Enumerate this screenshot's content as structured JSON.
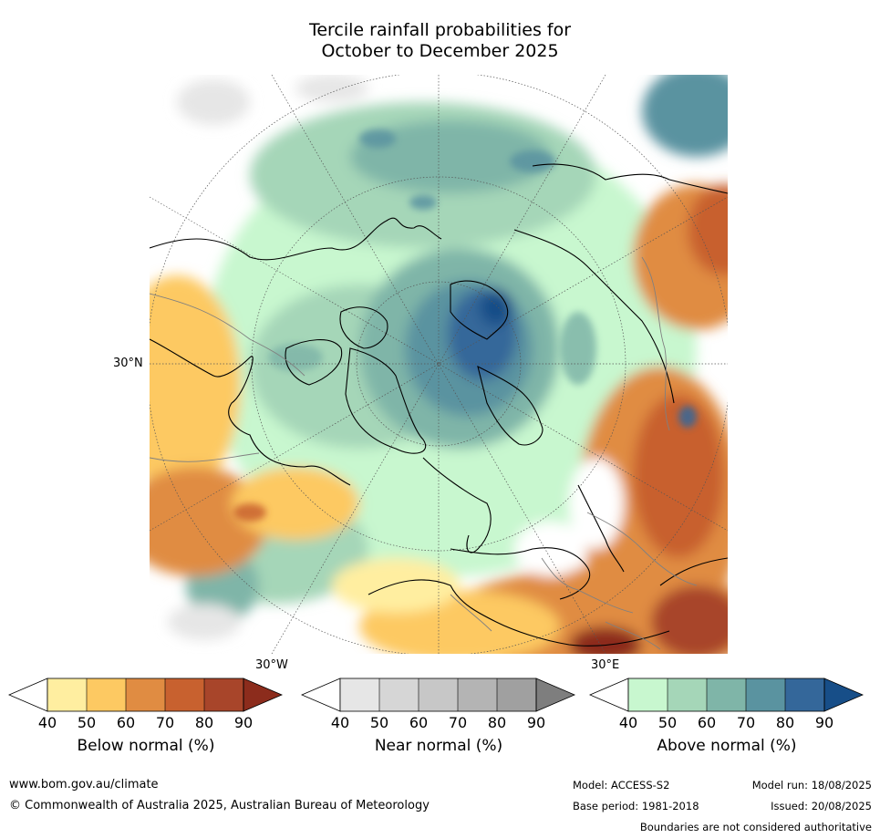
{
  "title": {
    "line1": "Tercile rainfall probabilities for",
    "line2": "October to December 2025"
  },
  "map": {
    "projection": "north-polar-stereographic",
    "labels": {
      "lat": "30°N",
      "lon_west": "30°W",
      "lon_east": "30°E"
    }
  },
  "colorbars": [
    {
      "name": "below",
      "label": "Below normal (%)",
      "ticks": [
        "40",
        "50",
        "60",
        "70",
        "80",
        "90"
      ],
      "colors": [
        "#ffffff",
        "#ffeea0",
        "#fdc962",
        "#e08c42",
        "#c8612f",
        "#a8452a",
        "#8c2c1c"
      ]
    },
    {
      "name": "near",
      "label": "Near normal (%)",
      "ticks": [
        "40",
        "50",
        "60",
        "70",
        "80",
        "90"
      ],
      "colors": [
        "#ffffff",
        "#e6e6e6",
        "#d6d6d6",
        "#c7c7c7",
        "#b4b4b4",
        "#a0a0a0",
        "#7e7e7e"
      ]
    },
    {
      "name": "above",
      "label": "Above normal (%)",
      "ticks": [
        "40",
        "50",
        "60",
        "70",
        "80",
        "90"
      ],
      "colors": [
        "#ffffff",
        "#c8f7cf",
        "#a5d6b8",
        "#7fb5a8",
        "#5a93a0",
        "#34679a",
        "#174e88"
      ]
    }
  ],
  "footer": {
    "website": "www.bom.gov.au/climate",
    "copyright": "© Commonwealth of Australia 2025, Australian Bureau of Meteorology",
    "model": "Model: ACCESS-S2",
    "model_run": "Model run: 18/08/2025",
    "base_period": "Base period: 1981-2018",
    "issued": "Issued: 20/08/2025",
    "disclaimer": "Boundaries are not considered authoritative"
  }
}
